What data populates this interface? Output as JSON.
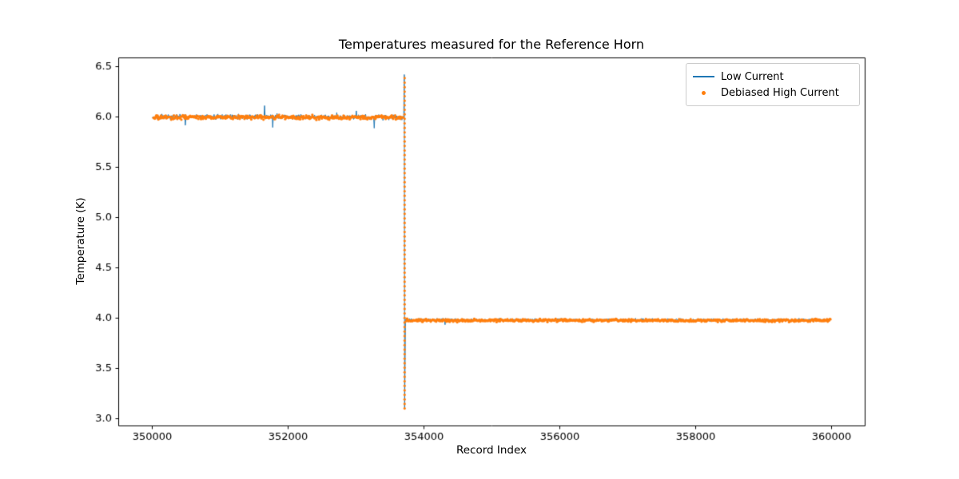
{
  "chart_data": {
    "type": "line",
    "title": "Temperatures measured for the Reference Horn",
    "xlabel": "Record Index",
    "ylabel": "Temperature (K)",
    "xlim": [
      349500,
      360500
    ],
    "ylim": [
      2.93,
      6.59
    ],
    "xticks": [
      350000,
      352000,
      354000,
      356000,
      358000,
      360000
    ],
    "yticks": [
      3.0,
      3.5,
      4.0,
      4.5,
      5.0,
      5.5,
      6.0,
      6.5
    ],
    "grid": false,
    "legend_position": "upper right",
    "axes_color": "#000000",
    "background_color": "#ffffff",
    "description": "High-temperature plateau near 6.0 K from record 350000 to ~353715, sharp spike to 6.42 K then drop to 3.10 K at ~353720, then low plateau near 3.98 K out to 360000. Orange debiased points overlay the blue line, including a dotted vertical column through the transition.",
    "series": [
      {
        "name": "Low Current",
        "color": "#1f77b4",
        "style": "line",
        "line_width": 1,
        "segments": [
          {
            "x0": 350000,
            "x1": 353700,
            "base": 6.0,
            "noise": 0.013,
            "spike_prob": 0.015,
            "spike_mag": 0.1,
            "step": 8
          },
          {
            "x0": 353740,
            "x1": 360000,
            "base": 3.981,
            "noise": 0.007,
            "spike_prob": 0.006,
            "spike_mag": 0.035,
            "step": 8
          }
        ],
        "transition": {
          "x": 353715,
          "peak": 6.42,
          "trough": 3.1
        }
      },
      {
        "name": "Debiased High Current",
        "color": "#ff7f0e",
        "style": "scatter",
        "marker_size": 1.6,
        "segments": [
          {
            "x0": 350020,
            "x1": 353700,
            "base": 5.995,
            "noise": 0.01,
            "spike_prob": 0,
            "spike_mag": 0,
            "step": 10
          },
          {
            "x0": 353745,
            "x1": 360000,
            "base": 3.975,
            "noise": 0.007,
            "spike_prob": 0,
            "spike_mag": 0,
            "step": 10
          }
        ],
        "transition_column": {
          "x": 353720,
          "y0": 3.1,
          "y1": 6.4,
          "step": 0.045
        }
      }
    ]
  }
}
